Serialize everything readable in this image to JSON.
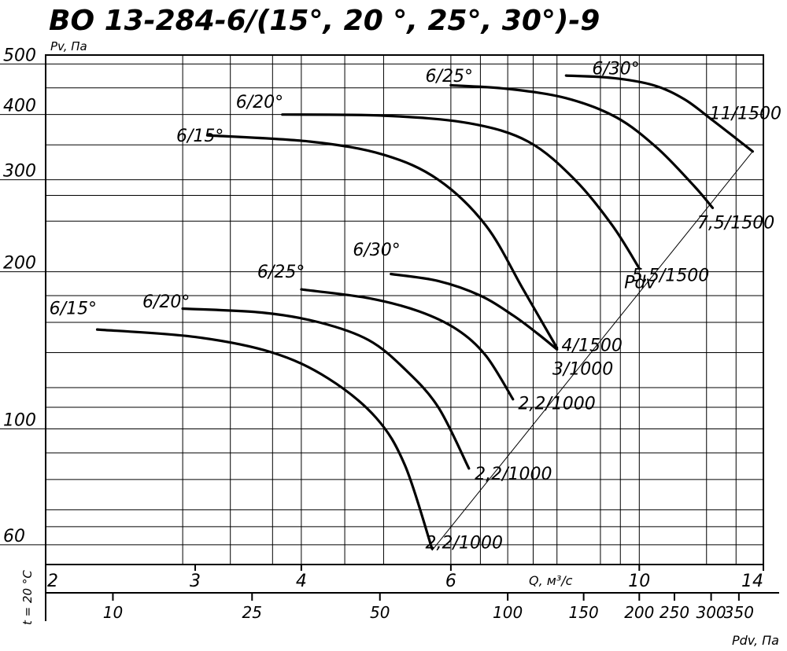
{
  "chart_data": {
    "type": "line",
    "title": "ВО 13-284-6/(15°, 20 °, 25°, 30°)-9",
    "ylabel": "Pv, Па",
    "xlabel": "Q, м³/с",
    "x2label": "Pdv, Па",
    "temp_label": "t = 20 °C",
    "y_scale": "log",
    "x_scale": "log",
    "xlim": [
      2,
      14
    ],
    "ylim": [
      55,
      520
    ],
    "grid": true,
    "y_ticks": [
      {
        "value": 500,
        "label": "500"
      },
      {
        "value": 400,
        "label": "400"
      },
      {
        "value": 300,
        "label": "300"
      },
      {
        "value": 200,
        "label": "200"
      },
      {
        "value": 100,
        "label": "100"
      },
      {
        "value": 60,
        "label": "60"
      }
    ],
    "y_grid": [
      60,
      65,
      70,
      80,
      90,
      100,
      110,
      120,
      140,
      160,
      180,
      200,
      250,
      280,
      300,
      350,
      400,
      450,
      500
    ],
    "x_ticks": [
      {
        "value": 2,
        "label": "2"
      },
      {
        "value": 3,
        "label": "3"
      },
      {
        "value": 4,
        "label": "4"
      },
      {
        "value": 6,
        "label": "6"
      },
      {
        "value": 10,
        "label": "10"
      },
      {
        "value": 14,
        "label": "14"
      }
    ],
    "x_grid": [
      2.9,
      3.3,
      3.7,
      4,
      4.5,
      5,
      6,
      6.5,
      7,
      7.5,
      8,
      9,
      9.5,
      10,
      12,
      13
    ],
    "pdv_ticks": [
      {
        "q": 2.4,
        "label": "10"
      },
      {
        "q": 3.5,
        "label": "25"
      },
      {
        "q": 4.95,
        "label": "50"
      },
      {
        "q": 7.0,
        "label": "100"
      },
      {
        "q": 8.6,
        "label": "150"
      },
      {
        "q": 10.0,
        "label": "200"
      },
      {
        "q": 11.0,
        "label": "250"
      },
      {
        "q": 12.15,
        "label": "300"
      },
      {
        "q": 13.1,
        "label": "350"
      }
    ],
    "pdv_line": {
      "label": "Pdv",
      "label_at": [
        9.6,
        186
      ],
      "points": [
        [
          5.7,
          58.5
        ],
        [
          13.6,
          340
        ]
      ]
    },
    "series": [
      {
        "label": "6/15°",
        "motor": "2,2/1000",
        "label_at": [
          2.02,
          166
        ],
        "motor_at": [
          5.6,
          59
        ],
        "points": [
          [
            2.3,
            155
          ],
          [
            3.0,
            150
          ],
          [
            3.7,
            140
          ],
          [
            4.3,
            125
          ],
          [
            4.9,
            105
          ],
          [
            5.3,
            85
          ],
          [
            5.7,
            59
          ]
        ]
      },
      {
        "label": "6/20°",
        "label_at": [
          2.6,
          171
        ],
        "motor": "2,2/1000",
        "motor_at": [
          6.4,
          80
        ],
        "points": [
          [
            2.9,
            170
          ],
          [
            3.6,
            167
          ],
          [
            4.2,
            160
          ],
          [
            4.8,
            148
          ],
          [
            5.3,
            130
          ],
          [
            5.8,
            110
          ],
          [
            6.3,
            84
          ]
        ]
      },
      {
        "label": "6/25°",
        "label_at": [
          3.55,
          195
        ],
        "motor": "2,2/1000",
        "motor_at": [
          7.2,
          109
        ],
        "points": [
          [
            4.0,
            185
          ],
          [
            4.8,
            178
          ],
          [
            5.5,
            168
          ],
          [
            6.1,
            155
          ],
          [
            6.6,
            138
          ],
          [
            7.1,
            114
          ]
        ]
      },
      {
        "label": "6/30°",
        "label_at": [
          4.6,
          215
        ],
        "motor": "4/1500",
        "motor_at": [
          8.1,
          141
        ],
        "points": [
          [
            5.1,
            198
          ],
          [
            5.8,
            192
          ],
          [
            6.5,
            180
          ],
          [
            7.1,
            165
          ],
          [
            7.6,
            152
          ],
          [
            8.0,
            142
          ]
        ]
      },
      {
        "label": "6/15°",
        "label_at": [
          2.85,
          355
        ],
        "motor": "3/1000",
        "motor_at": [
          7.9,
          127
        ],
        "points": [
          [
            3.1,
            365
          ],
          [
            4.1,
            355
          ],
          [
            5.0,
            335
          ],
          [
            5.8,
            300
          ],
          [
            6.6,
            245
          ],
          [
            7.3,
            185
          ],
          [
            8.0,
            143
          ]
        ]
      },
      {
        "label": "6/20°",
        "label_at": [
          3.35,
          412
        ],
        "motor": "5,5/1500",
        "motor_at": [
          9.8,
          192
        ],
        "points": [
          [
            3.8,
            400
          ],
          [
            5.0,
            398
          ],
          [
            6.3,
            385
          ],
          [
            7.4,
            355
          ],
          [
            8.4,
            300
          ],
          [
            9.3,
            245
          ],
          [
            10.0,
            203
          ]
        ]
      },
      {
        "label": "6/25°",
        "label_at": [
          5.6,
          462
        ],
        "motor": "7,5/1500",
        "motor_at": [
          11.7,
          242
        ],
        "points": [
          [
            6.0,
            455
          ],
          [
            7.0,
            448
          ],
          [
            8.2,
            430
          ],
          [
            9.4,
            395
          ],
          [
            10.5,
            345
          ],
          [
            11.6,
            292
          ],
          [
            12.2,
            265
          ]
        ]
      },
      {
        "label": "6/30°",
        "label_at": [
          8.8,
          478
        ],
        "motor": "11/1500",
        "motor_at": [
          12.1,
          392
        ],
        "points": [
          [
            8.2,
            475
          ],
          [
            9.3,
            470
          ],
          [
            10.4,
            455
          ],
          [
            11.3,
            428
          ],
          [
            12.2,
            390
          ],
          [
            13.0,
            360
          ],
          [
            13.6,
            340
          ]
        ]
      }
    ]
  }
}
